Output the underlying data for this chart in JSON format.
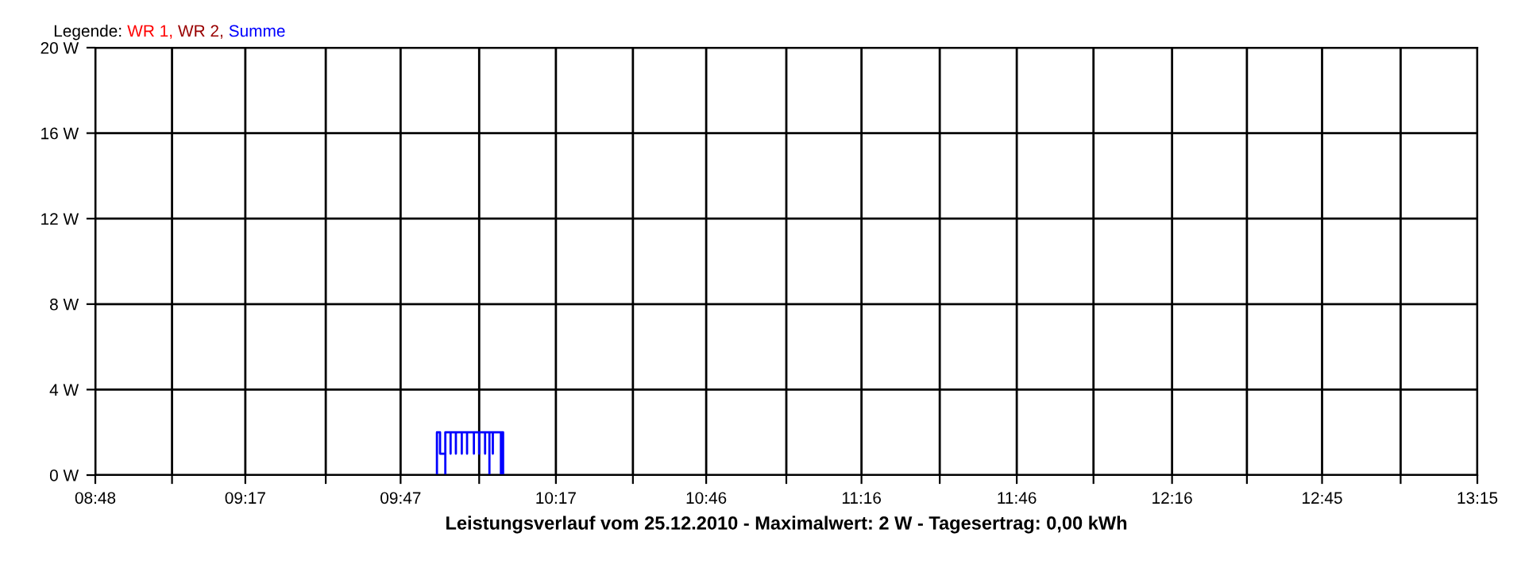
{
  "chart_data": {
    "type": "line",
    "xlabel": "Leistungsverlauf vom 25.12.2010 - Maximalwert: 2 W - Tagesertrag: 0,00 kWh",
    "legend_title": "Legende:",
    "legend": "top left",
    "grid": true,
    "xlim": [
      8.8,
      13.25
    ],
    "ylim": [
      0,
      20
    ],
    "xticks": [
      {
        "value": 8.8,
        "label": "08:48"
      },
      {
        "value": 9.047,
        "label": null
      },
      {
        "value": 9.283,
        "label": "09:17"
      },
      {
        "value": 9.542,
        "label": null
      },
      {
        "value": 9.783,
        "label": "09:47"
      },
      {
        "value": 10.036,
        "label": null
      },
      {
        "value": 10.283,
        "label": "10:17"
      },
      {
        "value": 10.531,
        "label": null
      },
      {
        "value": 10.767,
        "label": "10:46"
      },
      {
        "value": 11.025,
        "label": null
      },
      {
        "value": 11.267,
        "label": "11:16"
      },
      {
        "value": 11.519,
        "label": null
      },
      {
        "value": 11.767,
        "label": "11:46"
      },
      {
        "value": 12.014,
        "label": null
      },
      {
        "value": 12.267,
        "label": "12:16"
      },
      {
        "value": 12.508,
        "label": null
      },
      {
        "value": 12.75,
        "label": "12:45"
      },
      {
        "value": 13.003,
        "label": null
      },
      {
        "value": 13.25,
        "label": "13:15"
      }
    ],
    "yticks": [
      {
        "value": 0,
        "label": "0 W"
      },
      {
        "value": 4,
        "label": "4 W"
      },
      {
        "value": 8,
        "label": "8 W"
      },
      {
        "value": 12,
        "label": "12 W"
      },
      {
        "value": 16,
        "label": "16 W"
      },
      {
        "value": 20,
        "label": "20 W"
      }
    ],
    "series": [
      {
        "name": "WR 1,",
        "color": "#ff0000"
      },
      {
        "name": "WR 2,",
        "color": "#990000"
      },
      {
        "name": "Summe",
        "color": "#0000ff",
        "x": [
          9.9,
          9.9,
          9.91,
          9.91,
          9.927,
          9.927,
          9.927,
          9.944,
          9.944,
          9.944,
          9.961,
          9.961,
          9.961,
          9.98,
          9.98,
          9.98,
          9.997,
          9.997,
          9.997,
          10.019,
          10.019,
          10.019,
          10.036,
          10.036,
          10.036,
          10.055,
          10.055,
          10.055,
          10.069,
          10.069,
          10.069,
          10.08,
          10.08,
          10.08,
          10.106,
          10.106,
          10.106,
          10.113,
          10.113
        ],
        "values": [
          0,
          2,
          2,
          1,
          1,
          0,
          2,
          2,
          1,
          2,
          2,
          1,
          2,
          2,
          1,
          2,
          2,
          1,
          2,
          2,
          1,
          2,
          2,
          1,
          2,
          2,
          1,
          2,
          2,
          0,
          2,
          2,
          1,
          2,
          2,
          0,
          2,
          2,
          0
        ]
      }
    ]
  }
}
